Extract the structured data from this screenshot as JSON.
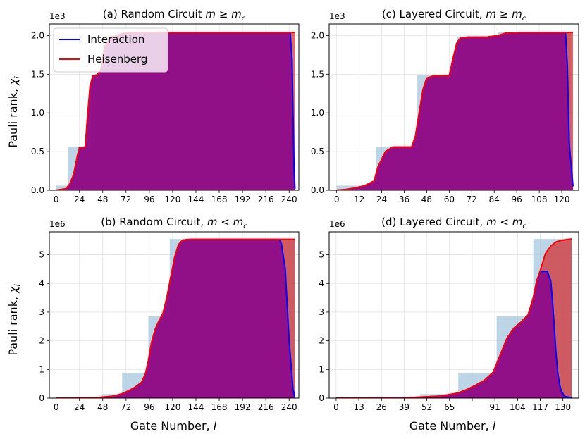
{
  "figure": {
    "ylabel_text": "Pauli rank, ",
    "ylabel_var": "χ",
    "ylabel_sub": "i",
    "xlabel_text": "Gate Number, ",
    "xlabel_var": "i",
    "legend": [
      {
        "label": "Interaction",
        "color": "#0000ff"
      },
      {
        "label": "Heisenberg",
        "color": "#ff0000"
      }
    ],
    "colors": {
      "interaction": "#0000ff",
      "heisenberg": "#ff0000",
      "interaction_fill": "#1f00ff",
      "heisenberg_fill": "#d62728",
      "step_fill": "#a6c8e0"
    }
  },
  "chart_data": [
    {
      "type": "area",
      "title_prefix": "(a) Random Circuit  ",
      "title_math": "m ≥ m",
      "title_sub": "c",
      "multiplier": "1e3",
      "xlim": [
        -7,
        250
      ],
      "ylim": [
        0,
        2.15
      ],
      "xticks": [
        0,
        24,
        48,
        72,
        96,
        120,
        144,
        168,
        192,
        216,
        240
      ],
      "yticks": [
        0.0,
        0.5,
        1.0,
        1.5,
        2.0
      ],
      "ytick_labels": [
        "0.0",
        "0.5",
        "1.0",
        "1.5",
        "2.0"
      ],
      "show_legend": true,
      "steps": [
        [
          0,
          0.06
        ],
        [
          12,
          0.06
        ],
        [
          12,
          0.56
        ],
        [
          24,
          0.56
        ],
        [
          24,
          0.56
        ],
        [
          36,
          0.56
        ],
        [
          36,
          1.49
        ],
        [
          48,
          1.49
        ],
        [
          48,
          1.98
        ],
        [
          60,
          1.98
        ],
        [
          60,
          2.05
        ],
        [
          243,
          2.05
        ]
      ],
      "series": [
        {
          "name": "Interaction",
          "x": [
            0,
            10,
            14,
            18,
            22,
            24,
            30,
            32,
            35,
            38,
            42,
            46,
            50,
            56,
            60,
            70,
            80,
            120,
            200,
            241,
            243,
            245,
            246
          ],
          "y": [
            0.0,
            0.02,
            0.08,
            0.2,
            0.45,
            0.55,
            0.56,
            0.9,
            1.35,
            1.48,
            1.49,
            1.55,
            1.85,
            1.98,
            1.99,
            2.03,
            2.04,
            2.04,
            2.04,
            2.04,
            1.7,
            0.3,
            0.02
          ]
        },
        {
          "name": "Heisenberg",
          "x": [
            0,
            10,
            14,
            18,
            22,
            24,
            30,
            32,
            35,
            38,
            42,
            46,
            50,
            56,
            60,
            70,
            80,
            120,
            200,
            246
          ],
          "y": [
            0.0,
            0.02,
            0.08,
            0.2,
            0.45,
            0.55,
            0.56,
            0.9,
            1.35,
            1.48,
            1.49,
            1.55,
            1.85,
            1.98,
            1.99,
            2.03,
            2.04,
            2.04,
            2.04,
            2.04
          ]
        }
      ]
    },
    {
      "type": "area",
      "title_prefix": "(c) Layered Circuit, ",
      "title_math": "m ≥ m",
      "title_sub": "c",
      "multiplier": "1e3",
      "xlim": [
        -4,
        129
      ],
      "ylim": [
        0,
        2.15
      ],
      "xticks": [
        0,
        12,
        24,
        36,
        48,
        60,
        72,
        84,
        96,
        108,
        120
      ],
      "yticks": [
        0.0,
        0.5,
        1.0,
        1.5,
        2.0
      ],
      "ytick_labels": [
        "0.0",
        "0.5",
        "1.0",
        "1.5",
        "2.0"
      ],
      "show_legend": false,
      "steps": [
        [
          0,
          0.06
        ],
        [
          21,
          0.06
        ],
        [
          21,
          0.56
        ],
        [
          43,
          0.56
        ],
        [
          43,
          1.49
        ],
        [
          64,
          1.49
        ],
        [
          64,
          1.98
        ],
        [
          86,
          1.98
        ],
        [
          86,
          2.05
        ],
        [
          125,
          2.05
        ]
      ],
      "series": [
        {
          "name": "Interaction",
          "x": [
            0,
            5,
            10,
            15,
            20,
            22,
            26,
            30,
            40,
            42,
            44,
            46,
            48,
            52,
            60,
            62,
            64,
            66,
            70,
            80,
            86,
            90,
            100,
            122,
            123,
            124,
            126
          ],
          "y": [
            0.0,
            0.01,
            0.03,
            0.06,
            0.12,
            0.3,
            0.5,
            0.56,
            0.56,
            0.7,
            1.0,
            1.3,
            1.45,
            1.48,
            1.48,
            1.7,
            1.9,
            1.97,
            1.98,
            1.98,
            2.0,
            2.03,
            2.04,
            2.04,
            1.6,
            0.6,
            0.05
          ]
        },
        {
          "name": "Heisenberg",
          "x": [
            0,
            5,
            10,
            15,
            20,
            22,
            26,
            30,
            40,
            42,
            44,
            46,
            48,
            52,
            60,
            62,
            64,
            66,
            70,
            80,
            86,
            90,
            100,
            126
          ],
          "y": [
            0.0,
            0.01,
            0.03,
            0.06,
            0.12,
            0.3,
            0.5,
            0.56,
            0.56,
            0.7,
            1.0,
            1.3,
            1.45,
            1.48,
            1.48,
            1.7,
            1.9,
            1.97,
            1.98,
            1.98,
            2.0,
            2.03,
            2.04,
            2.04
          ]
        }
      ]
    },
    {
      "type": "area",
      "title_prefix": "(b) Random Circuit, ",
      "title_math": "m < m",
      "title_sub": "c",
      "multiplier": "1e6",
      "xlim": [
        -7,
        250
      ],
      "ylim": [
        0,
        5.8
      ],
      "xticks": [
        0,
        24,
        48,
        72,
        96,
        120,
        144,
        168,
        192,
        216,
        240
      ],
      "yticks": [
        0,
        1,
        2,
        3,
        4,
        5
      ],
      "ytick_labels": [
        "0",
        "1",
        "2",
        "3",
        "4",
        "5"
      ],
      "show_legend": false,
      "steps": [
        [
          0,
          0.0
        ],
        [
          47,
          0.0
        ],
        [
          47,
          0.14
        ],
        [
          68,
          0.14
        ],
        [
          68,
          0.88
        ],
        [
          95,
          0.88
        ],
        [
          95,
          2.85
        ],
        [
          117,
          2.85
        ],
        [
          117,
          5.55
        ],
        [
          246,
          5.55
        ]
      ],
      "series": [
        {
          "name": "Interaction",
          "x": [
            0,
            40,
            60,
            70,
            80,
            88,
            92,
            95,
            98,
            102,
            106,
            110,
            114,
            118,
            122,
            126,
            130,
            134,
            140,
            160,
            200,
            230,
            232,
            236,
            240,
            244,
            246
          ],
          "y": [
            0.0,
            0.01,
            0.07,
            0.18,
            0.35,
            0.55,
            0.85,
            1.3,
            1.9,
            2.4,
            2.7,
            2.95,
            3.5,
            4.2,
            4.9,
            5.35,
            5.5,
            5.53,
            5.54,
            5.54,
            5.54,
            5.54,
            5.4,
            4.5,
            2.0,
            0.3,
            0.02
          ]
        },
        {
          "name": "Heisenberg",
          "x": [
            0,
            40,
            60,
            70,
            80,
            88,
            92,
            95,
            98,
            102,
            106,
            110,
            114,
            118,
            122,
            126,
            130,
            134,
            140,
            160,
            200,
            246
          ],
          "y": [
            0.0,
            0.01,
            0.07,
            0.18,
            0.35,
            0.55,
            0.85,
            1.3,
            1.9,
            2.4,
            2.7,
            2.95,
            3.5,
            4.2,
            4.9,
            5.35,
            5.5,
            5.53,
            5.54,
            5.54,
            5.54,
            5.54
          ]
        }
      ]
    },
    {
      "type": "area",
      "title_prefix": "(d) Layered Circuit, ",
      "title_math": "m < m",
      "title_sub": "c",
      "multiplier": "1e6",
      "xlim": [
        -4,
        139
      ],
      "ylim": [
        0,
        5.8
      ],
      "xticks": [
        0,
        13,
        26,
        39,
        52,
        65,
        78,
        91,
        104,
        117,
        130
      ],
      "ytick_labels": [
        "0",
        "1",
        "2",
        "3",
        "4",
        "5"
      ],
      "yticks": [
        0,
        1,
        2,
        3,
        4,
        5
      ],
      "xtick_labels": [
        "0",
        "13",
        "26",
        "39",
        "52",
        "65",
        "",
        "91",
        "104",
        "117",
        "130"
      ],
      "show_legend": false,
      "steps": [
        [
          0,
          0.0
        ],
        [
          48,
          0.0
        ],
        [
          48,
          0.14
        ],
        [
          70,
          0.14
        ],
        [
          70,
          0.88
        ],
        [
          92,
          0.88
        ],
        [
          92,
          2.85
        ],
        [
          113,
          2.85
        ],
        [
          113,
          5.55
        ],
        [
          135,
          5.55
        ]
      ],
      "series": [
        {
          "name": "Interaction",
          "x": [
            0,
            40,
            60,
            70,
            75,
            80,
            85,
            90,
            94,
            98,
            102,
            106,
            110,
            113,
            115,
            117,
            119,
            121,
            123,
            124,
            125,
            126,
            127,
            128,
            129,
            131,
            135
          ],
          "y": [
            0.0,
            0.01,
            0.07,
            0.18,
            0.3,
            0.45,
            0.62,
            0.9,
            1.5,
            2.1,
            2.45,
            2.65,
            2.9,
            3.5,
            4.1,
            4.4,
            4.42,
            4.42,
            4.1,
            3.4,
            2.5,
            1.6,
            0.9,
            0.5,
            0.25,
            0.06,
            0.01
          ]
        },
        {
          "name": "Heisenberg",
          "x": [
            0,
            40,
            60,
            70,
            75,
            80,
            85,
            90,
            94,
            98,
            102,
            106,
            110,
            113,
            115,
            117,
            120,
            123,
            126,
            129,
            132,
            135
          ],
          "y": [
            0.0,
            0.01,
            0.07,
            0.18,
            0.3,
            0.45,
            0.62,
            0.9,
            1.5,
            2.1,
            2.45,
            2.65,
            2.9,
            3.5,
            4.1,
            4.45,
            5.05,
            5.3,
            5.45,
            5.5,
            5.53,
            5.55
          ]
        }
      ]
    }
  ]
}
